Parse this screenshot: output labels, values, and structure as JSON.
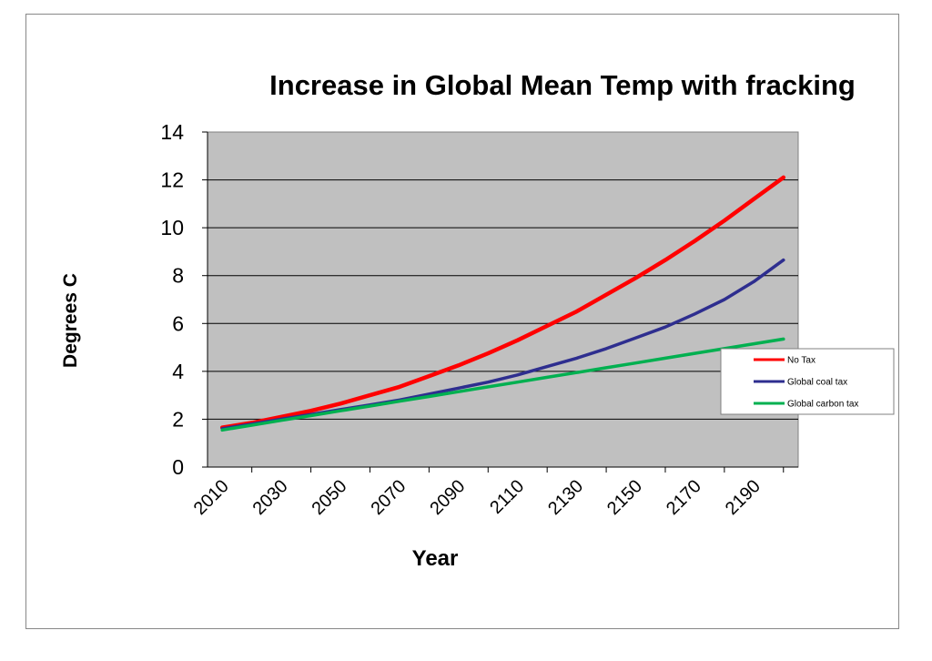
{
  "chart_data": {
    "type": "line",
    "title": "Increase in Global Mean Temp with fracking",
    "xlabel": "Year",
    "ylabel": "Degrees C",
    "x_ticks": [
      "2010",
      "2030",
      "2050",
      "2070",
      "2090",
      "2110",
      "2130",
      "2150",
      "2170",
      "2190"
    ],
    "y_ticks": [
      "0",
      "2",
      "4",
      "6",
      "8",
      "10",
      "12",
      "14"
    ],
    "ylim": [
      0,
      14
    ],
    "xlim": [
      2005,
      2205
    ],
    "grid": true,
    "legend_position": "right",
    "plot_background": "#c0c0c0",
    "x": [
      2010,
      2020,
      2030,
      2040,
      2050,
      2060,
      2070,
      2080,
      2090,
      2100,
      2110,
      2120,
      2130,
      2140,
      2150,
      2160,
      2170,
      2180,
      2190,
      2200
    ],
    "series": [
      {
        "name": "No Tax",
        "color": "#ff0000",
        "values": [
          1.65,
          1.85,
          2.1,
          2.35,
          2.65,
          3.0,
          3.35,
          3.8,
          4.25,
          4.75,
          5.3,
          5.9,
          6.5,
          7.2,
          7.9,
          8.65,
          9.45,
          10.3,
          11.2,
          12.1
        ]
      },
      {
        "name": "Global coal tax",
        "color": "#2e2e8f",
        "values": [
          1.6,
          1.8,
          2.0,
          2.2,
          2.4,
          2.6,
          2.8,
          3.05,
          3.3,
          3.55,
          3.85,
          4.2,
          4.55,
          4.95,
          5.4,
          5.85,
          6.4,
          7.0,
          7.75,
          8.65
        ]
      },
      {
        "name": "Global carbon tax",
        "color": "#00b050",
        "values": [
          1.55,
          1.75,
          1.95,
          2.15,
          2.35,
          2.55,
          2.75,
          2.95,
          3.15,
          3.35,
          3.55,
          3.75,
          3.95,
          4.15,
          4.35,
          4.55,
          4.75,
          4.95,
          5.15,
          5.35
        ]
      }
    ]
  }
}
